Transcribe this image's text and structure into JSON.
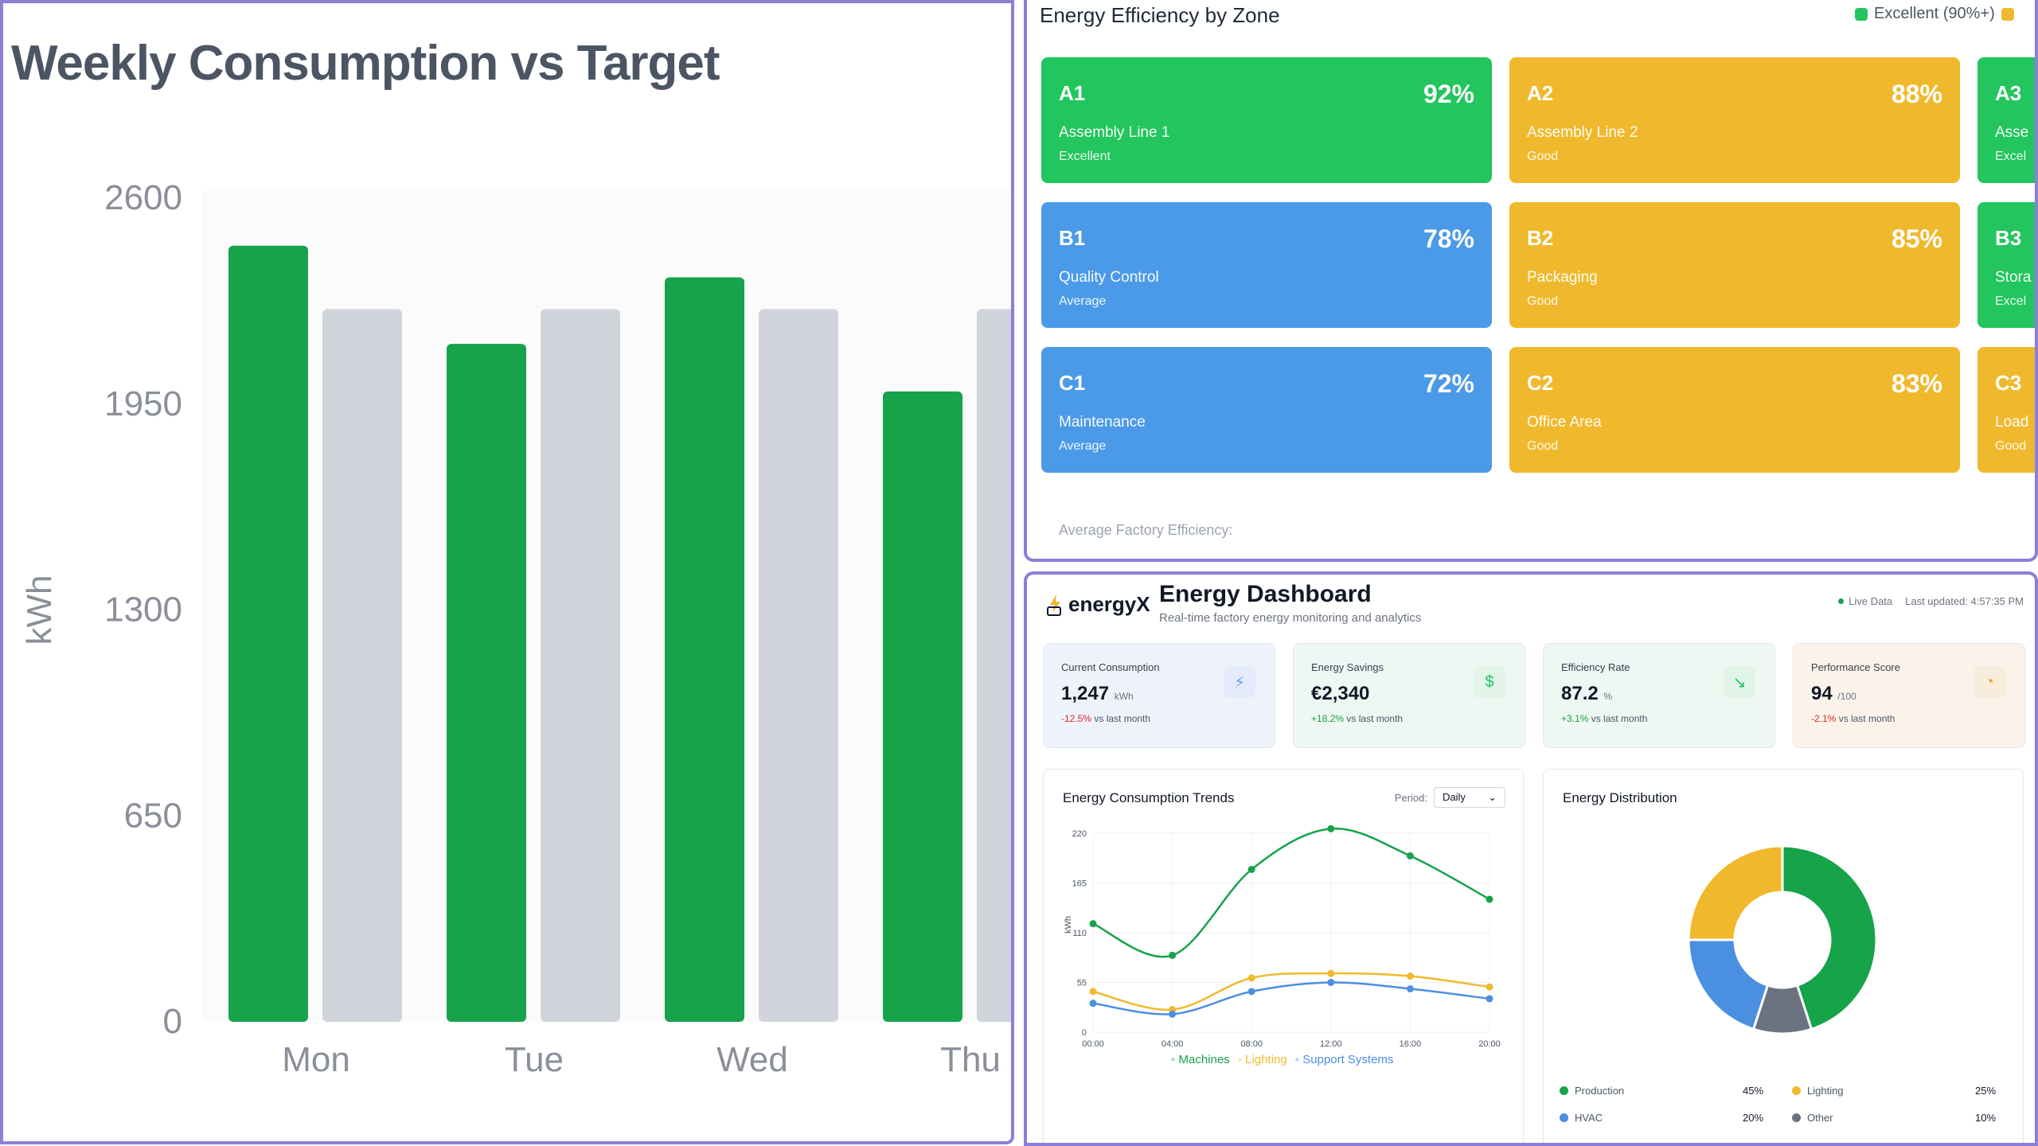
{
  "weekly": {
    "title": "Weekly Consumption vs Target",
    "chart_data": {
      "type": "bar",
      "title": "Weekly Consumption vs Target",
      "ylabel": "kWh",
      "ylim": [
        0,
        2600
      ],
      "yticks": [
        0,
        650,
        1300,
        1950,
        2600
      ],
      "categories": [
        "Mon",
        "Tue",
        "Wed",
        "Thu"
      ],
      "series": [
        {
          "values": [
            2450,
            2140,
            2350,
            1990
          ]
        },
        {
          "values": [
            2250,
            2250,
            2250,
            2250
          ]
        }
      ],
      "colors": [
        "#16a34a",
        "#d1d5db"
      ],
      "grid": false
    }
  },
  "zones": {
    "title": "Energy Efficiency by Zone",
    "legend_label": "Excellent (90%+)",
    "average_label": "Average Factory Efficiency:",
    "items": [
      {
        "id": "A1",
        "pct": "92%",
        "name": "Assembly Line 1",
        "status": "Excellent",
        "color": "#22c55e"
      },
      {
        "id": "A2",
        "pct": "88%",
        "name": "Assembly Line 2",
        "status": "Good",
        "color": "#f0b92d"
      },
      {
        "id": "A3",
        "pct": "",
        "name": "Asse",
        "status": "Excel",
        "color": "#22c55e"
      },
      {
        "id": "B1",
        "pct": "78%",
        "name": "Quality Control",
        "status": "Average",
        "color": "#4b9ae8"
      },
      {
        "id": "B2",
        "pct": "85%",
        "name": "Packaging",
        "status": "Good",
        "color": "#f0b92d"
      },
      {
        "id": "B3",
        "pct": "",
        "name": "Stora",
        "status": "Excel",
        "color": "#22c55e"
      },
      {
        "id": "C1",
        "pct": "72%",
        "name": "Maintenance",
        "status": "Average",
        "color": "#4b9ae8"
      },
      {
        "id": "C2",
        "pct": "83%",
        "name": "Office Area",
        "status": "Good",
        "color": "#f0b92d"
      },
      {
        "id": "C3",
        "pct": "",
        "name": "Load",
        "status": "Good",
        "color": "#f0b92d"
      }
    ]
  },
  "dashboard": {
    "logo_text": "energyX",
    "title": "Energy Dashboard",
    "subtitle": "Real-time factory energy monitoring and analytics",
    "live_label": "Live Data",
    "last_updated": "Last updated: 4:57:35 PM",
    "stats": [
      {
        "label": "Current Consumption",
        "value": "1,247",
        "unit": "kWh",
        "delta": "-12.5%",
        "delta_suffix": "vs last month",
        "icon": "bolt-icon",
        "glyph": "⚡",
        "bg": "#eef2fb",
        "icon_bg": "#e4ebfa",
        "icon_color": "#60a5fa",
        "delta_color": "#dc2626"
      },
      {
        "label": "Energy Savings",
        "value": "€2,340",
        "unit": "",
        "delta": "+18.2%",
        "delta_suffix": "vs last month",
        "icon": "dollar-icon",
        "glyph": "$",
        "bg": "#eef7f1",
        "icon_bg": "#e2f3e8",
        "icon_color": "#22c55e",
        "delta_color": "#16a34a"
      },
      {
        "label": "Efficiency Rate",
        "value": "87.2",
        "unit": "%",
        "delta": "+3.1%",
        "delta_suffix": "vs last month",
        "icon": "trend-down-icon",
        "glyph": "↘",
        "bg": "#eef7f1",
        "icon_bg": "#e2f3e8",
        "icon_color": "#22c55e",
        "delta_color": "#16a34a"
      },
      {
        "label": "Performance Score",
        "value": "94",
        "unit": "/100",
        "delta": "-2.1%",
        "delta_suffix": "vs last month",
        "icon": "gauge-icon",
        "glyph": "◔",
        "bg": "#fbf3ea",
        "icon_bg": "#f8ecdd",
        "icon_color": "#f59e0b",
        "delta_color": "#dc2626"
      }
    ],
    "trends": {
      "title": "Energy Consumption Trends",
      "period_label": "Period:",
      "period_value": "Daily",
      "chart_data": {
        "type": "line",
        "ylabel": "kWh",
        "ylim": [
          0,
          220
        ],
        "yticks": [
          0,
          55,
          110,
          165,
          220
        ],
        "x": [
          "00:00",
          "04:00",
          "08:00",
          "12:00",
          "16:00",
          "20:00"
        ],
        "series": [
          {
            "name": "Machines",
            "values": [
              120,
              85,
              180,
              225,
              195,
              147
            ],
            "color": "#16a34a"
          },
          {
            "name": "Lighting",
            "values": [
              45,
              25,
              60,
              65,
              62,
              50
            ],
            "color": "#f0b92d"
          },
          {
            "name": "Support Systems",
            "values": [
              32,
              20,
              45,
              55,
              48,
              37
            ],
            "color": "#4b8fe0"
          }
        ],
        "grid": true
      }
    },
    "distribution": {
      "title": "Energy Distribution",
      "chart_data": {
        "type": "pie",
        "labels": [
          "Production",
          "HVAC",
          "Lighting",
          "Other"
        ],
        "values": [
          45,
          20,
          25,
          10
        ],
        "colors": [
          "#16a34a",
          "#4b8fe0",
          "#f0b92d",
          "#6b7280"
        ]
      },
      "legend": [
        {
          "label": "Production",
          "pct": "45%",
          "color": "#16a34a"
        },
        {
          "label": "Lighting",
          "pct": "25%",
          "color": "#f0b92d"
        },
        {
          "label": "HVAC",
          "pct": "20%",
          "color": "#4b8fe0"
        },
        {
          "label": "Other",
          "pct": "10%",
          "color": "#6b7280"
        }
      ]
    }
  }
}
